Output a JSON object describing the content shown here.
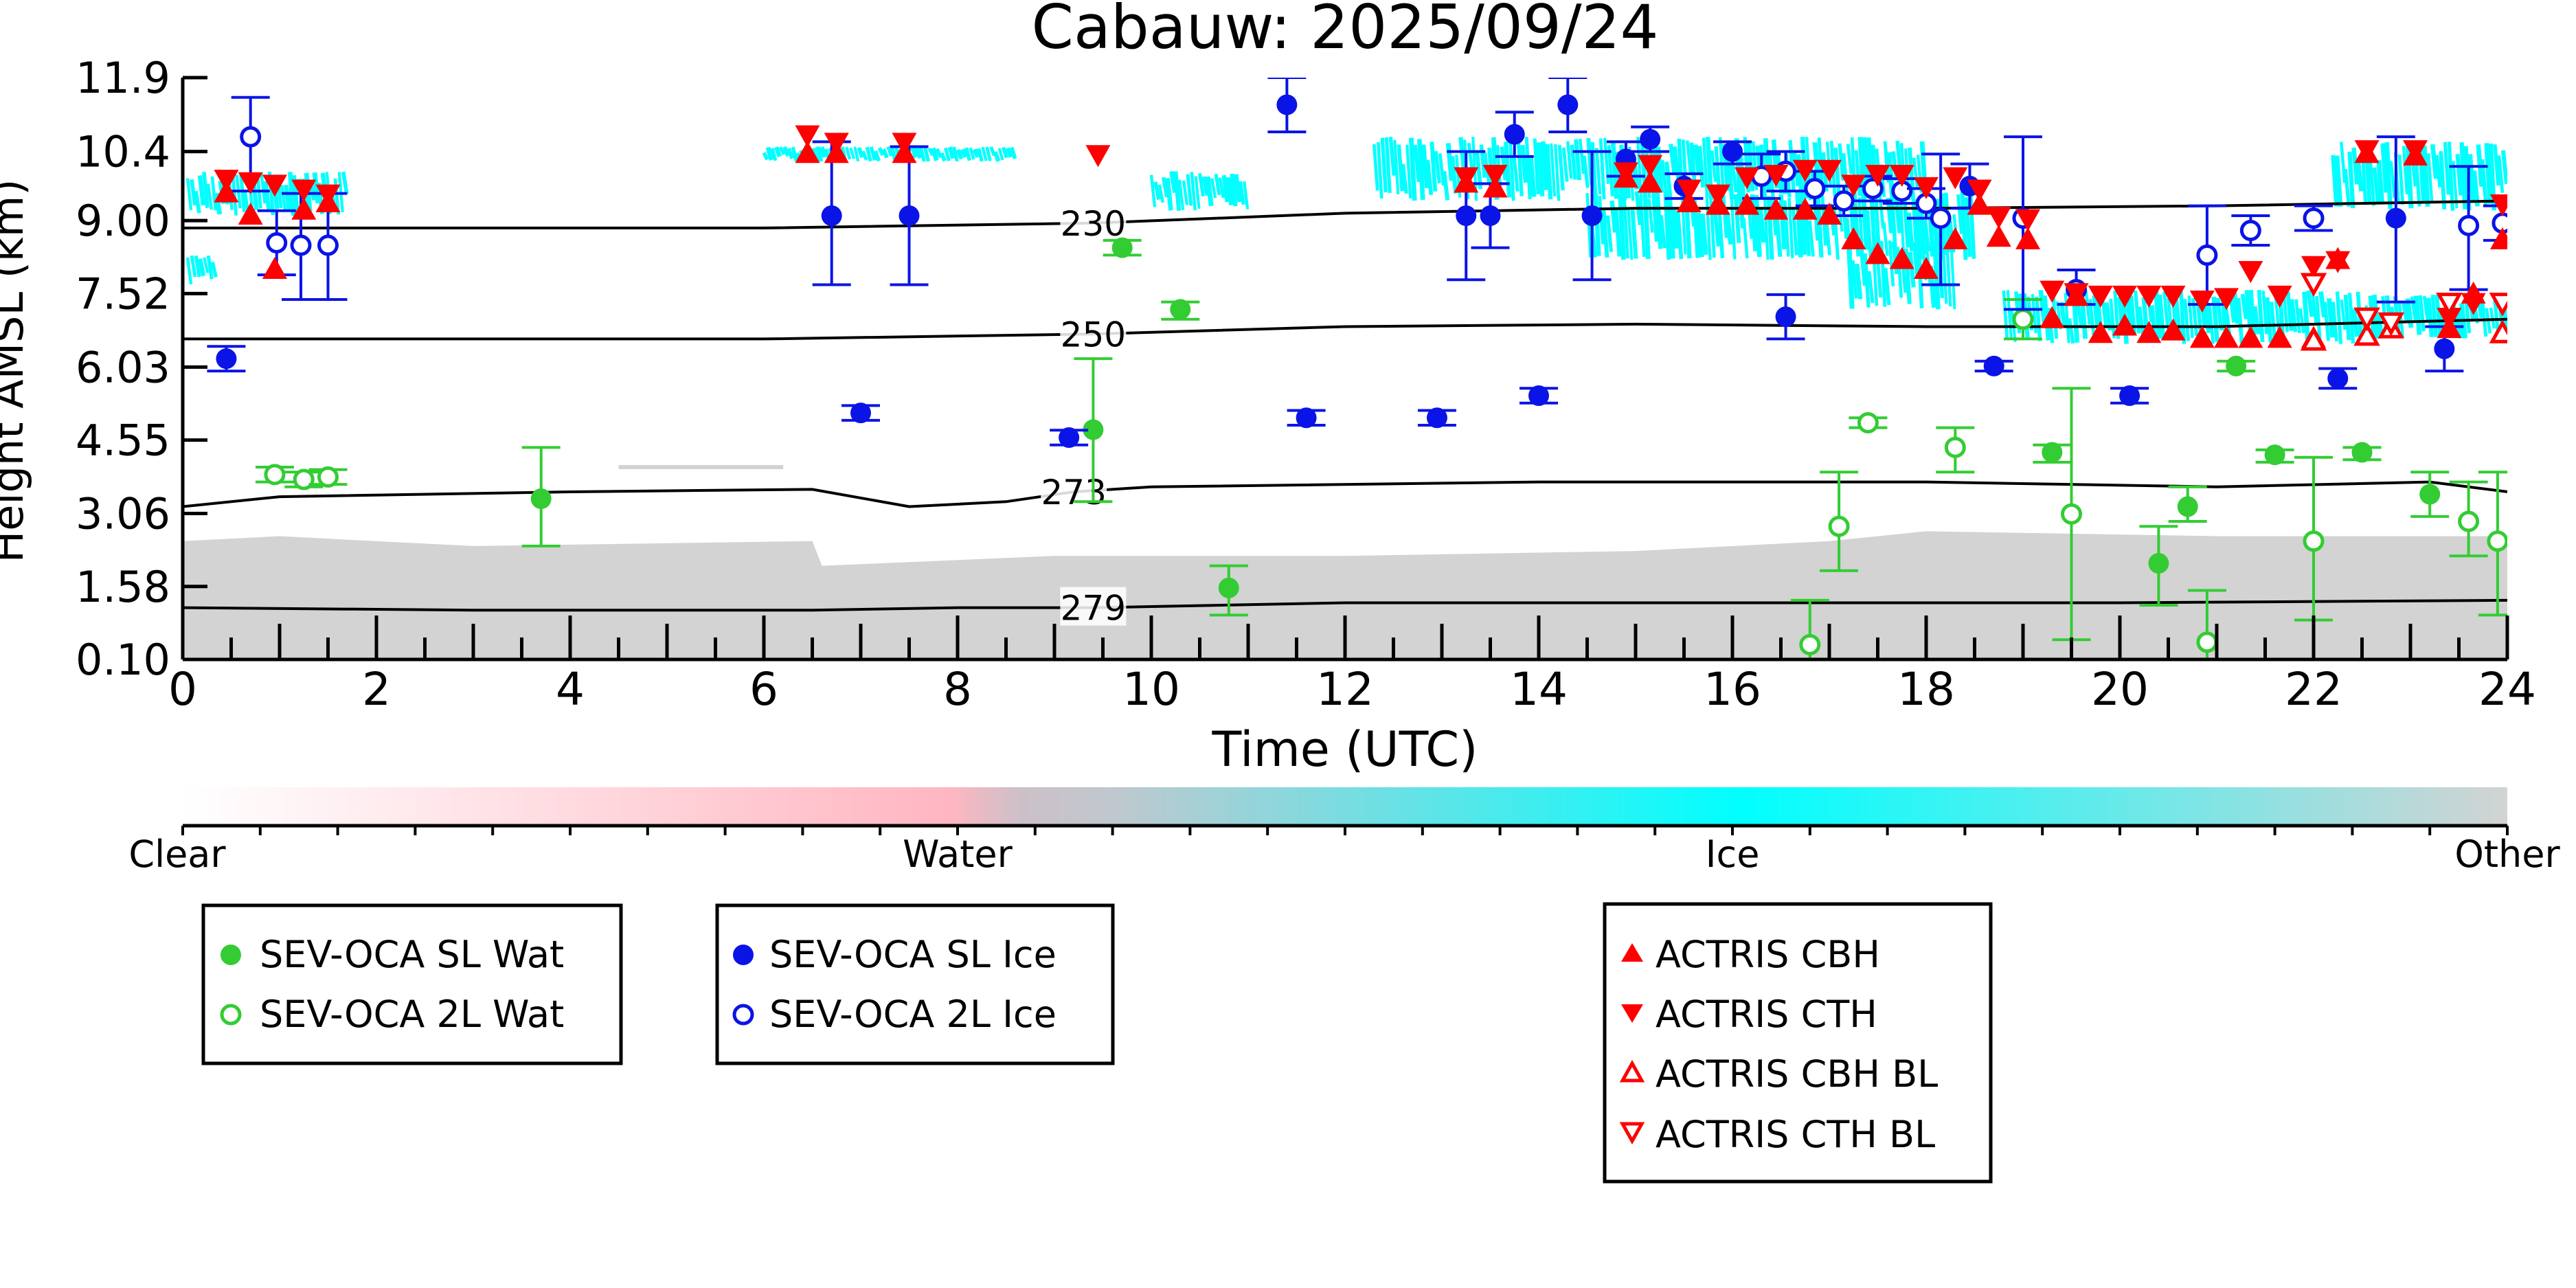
{
  "chart_data": {
    "type": "scatter",
    "title": "Cabauw: 2025/09/24",
    "xlabel": "Time (UTC)",
    "ylabel": "Height AMSL (km)",
    "xlim": [
      0,
      24
    ],
    "ylim": [
      0.1,
      11.9
    ],
    "x_ticks": [
      "0",
      "2",
      "4",
      "6",
      "8",
      "10",
      "12",
      "14",
      "16",
      "18",
      "20",
      "22",
      "24"
    ],
    "x_tick_values": [
      0,
      2,
      4,
      6,
      8,
      10,
      12,
      14,
      16,
      18,
      20,
      22,
      24
    ],
    "y_ticks": [
      "0.10",
      "1.58",
      "3.06",
      "4.55",
      "6.03",
      "7.52",
      "9.00",
      "10.4",
      "11.9"
    ],
    "y_tick_values": [
      0.1,
      1.58,
      3.06,
      4.55,
      6.03,
      7.52,
      9.0,
      10.4,
      11.9
    ],
    "colorbar": {
      "labels": [
        "Clear",
        "Water",
        "Ice",
        "Other"
      ],
      "colors": [
        "#ffffff",
        "#ffb6c1",
        "#00ffff",
        "#d3d3d3"
      ]
    },
    "background_classes": {
      "other_color": "#d3d3d3",
      "ice_color": "#00ffff",
      "water_color": "#ffb6c1",
      "other_low_layer": [
        [
          0,
          2.5
        ],
        [
          1,
          2.6
        ],
        [
          3,
          2.4
        ],
        [
          6.5,
          2.5
        ],
        [
          6.6,
          2.0
        ],
        [
          9,
          2.2
        ],
        [
          12,
          2.2
        ],
        [
          15,
          2.3
        ],
        [
          17,
          2.5
        ],
        [
          18,
          2.7
        ],
        [
          21,
          2.6
        ],
        [
          24,
          2.6
        ]
      ],
      "other_patches": [
        [
          4.5,
          4.0
        ],
        [
          6.2,
          4.0
        ]
      ],
      "ice_regions": [
        {
          "x": [
            0.05,
            1.7
          ],
          "y": [
            9.1,
            10.0
          ]
        },
        {
          "x": [
            0.05,
            0.35
          ],
          "y": [
            7.7,
            8.3
          ]
        },
        {
          "x": [
            6.0,
            8.6
          ],
          "y": [
            10.2,
            10.5
          ]
        },
        {
          "x": [
            10.0,
            11.0
          ],
          "y": [
            9.2,
            10.0
          ]
        },
        {
          "x": [
            12.3,
            18.0
          ],
          "y": [
            9.4,
            10.7
          ]
        },
        {
          "x": [
            14.5,
            18.5
          ],
          "y": [
            8.2,
            9.6
          ]
        },
        {
          "x": [
            17.2,
            18.3
          ],
          "y": [
            7.2,
            8.6
          ]
        },
        {
          "x": [
            18.8,
            22.5
          ],
          "y": [
            6.5,
            7.6
          ]
        },
        {
          "x": [
            22.2,
            24
          ],
          "y": [
            9.2,
            10.6
          ]
        },
        {
          "x": [
            22.5,
            24
          ],
          "y": [
            6.6,
            7.5
          ]
        }
      ]
    },
    "isotherms": [
      {
        "label": "230",
        "label_x": 9.4,
        "points": [
          [
            0,
            8.85
          ],
          [
            6,
            8.85
          ],
          [
            9.4,
            8.95
          ],
          [
            12,
            9.15
          ],
          [
            15,
            9.25
          ],
          [
            18,
            9.25
          ],
          [
            21,
            9.3
          ],
          [
            24,
            9.4
          ]
        ]
      },
      {
        "label": "250",
        "label_x": 9.4,
        "points": [
          [
            0,
            6.6
          ],
          [
            6,
            6.6
          ],
          [
            9.4,
            6.7
          ],
          [
            12,
            6.85
          ],
          [
            15,
            6.9
          ],
          [
            18,
            6.85
          ],
          [
            21,
            6.85
          ],
          [
            24,
            7.0
          ]
        ]
      },
      {
        "label": "273",
        "label_x": 9.2,
        "points": [
          [
            0,
            3.2
          ],
          [
            1,
            3.4
          ],
          [
            4,
            3.5
          ],
          [
            6.5,
            3.55
          ],
          [
            7.5,
            3.2
          ],
          [
            8.5,
            3.3
          ],
          [
            9.2,
            3.5
          ],
          [
            10,
            3.6
          ],
          [
            14,
            3.7
          ],
          [
            18,
            3.7
          ],
          [
            21,
            3.6
          ],
          [
            23.2,
            3.7
          ],
          [
            24,
            3.5
          ]
        ]
      },
      {
        "label": "279",
        "label_x": 9.4,
        "points": [
          [
            0,
            1.15
          ],
          [
            3,
            1.1
          ],
          [
            6.5,
            1.1
          ],
          [
            8,
            1.15
          ],
          [
            9.4,
            1.15
          ],
          [
            12,
            1.25
          ],
          [
            16,
            1.25
          ],
          [
            20,
            1.25
          ],
          [
            24,
            1.3
          ]
        ]
      }
    ],
    "series": [
      {
        "name": "SEV-OCA SL Wat",
        "color": "#33cc33",
        "marker": "filled-circle",
        "points": [
          [
            3.7,
            3.36,
            2.4,
            4.4
          ],
          [
            9.4,
            4.76,
            3.3,
            6.2
          ],
          [
            9.7,
            8.45,
            8.3,
            8.6
          ],
          [
            10.3,
            7.2,
            7.0,
            7.35
          ],
          [
            10.8,
            1.55,
            1.0,
            2.0
          ],
          [
            19.3,
            4.3,
            4.1,
            4.45
          ],
          [
            20.4,
            2.05,
            1.2,
            2.8
          ],
          [
            20.7,
            3.2,
            2.9,
            3.6
          ],
          [
            21.2,
            6.05,
            5.95,
            6.15
          ],
          [
            21.6,
            4.25,
            4.1,
            4.35
          ],
          [
            22.5,
            4.3,
            4.15,
            4.4
          ],
          [
            23.2,
            3.45,
            3.0,
            3.9
          ]
        ]
      },
      {
        "name": "SEV-OCA 2L Wat",
        "color": "#33cc33",
        "marker": "open-circle",
        "points": [
          [
            0.95,
            3.85,
            3.7,
            4.0
          ],
          [
            1.25,
            3.75,
            3.6,
            3.9
          ],
          [
            1.5,
            3.8,
            3.65,
            3.95
          ],
          [
            16.8,
            0.4,
            -0.5,
            1.3
          ],
          [
            17.1,
            2.8,
            1.9,
            3.9
          ],
          [
            17.4,
            4.9,
            4.8,
            5.0
          ],
          [
            18.3,
            4.4,
            3.9,
            4.8
          ],
          [
            19.0,
            7.0,
            6.6,
            7.4
          ],
          [
            19.5,
            3.05,
            0.5,
            5.6
          ],
          [
            20.9,
            0.45,
            -0.5,
            1.5
          ],
          [
            22.0,
            2.5,
            0.9,
            4.2
          ],
          [
            23.6,
            2.9,
            2.2,
            3.7
          ],
          [
            23.9,
            2.5,
            1.0,
            3.9
          ]
        ]
      },
      {
        "name": "SEV-OCA SL Ice",
        "color": "#0a14e6",
        "marker": "filled-circle",
        "points": [
          [
            0.45,
            6.2,
            5.95,
            6.45
          ],
          [
            6.7,
            9.1,
            7.7,
            10.6
          ],
          [
            7.0,
            5.1,
            4.95,
            5.25
          ],
          [
            7.5,
            9.1,
            7.7,
            10.5
          ],
          [
            9.15,
            4.6,
            4.45,
            4.75
          ],
          [
            11.4,
            11.35,
            10.8,
            11.9
          ],
          [
            11.6,
            5.0,
            4.85,
            5.15
          ],
          [
            12.95,
            5.0,
            4.85,
            5.15
          ],
          [
            13.25,
            9.1,
            7.8,
            10.4
          ],
          [
            13.5,
            9.1,
            8.45,
            9.75
          ],
          [
            13.75,
            10.75,
            10.3,
            11.2
          ],
          [
            14.0,
            5.45,
            5.3,
            5.6
          ],
          [
            14.3,
            11.35,
            10.8,
            11.9
          ],
          [
            14.55,
            9.1,
            7.8,
            10.4
          ],
          [
            14.9,
            10.25,
            9.9,
            10.6
          ],
          [
            15.15,
            10.65,
            10.4,
            10.9
          ],
          [
            15.5,
            9.7,
            9.45,
            9.95
          ],
          [
            16.0,
            10.4,
            10.15,
            10.6
          ],
          [
            16.55,
            7.05,
            6.6,
            7.5
          ],
          [
            18.45,
            9.7,
            9.25,
            10.15
          ],
          [
            18.7,
            6.05,
            5.95,
            6.15
          ],
          [
            20.1,
            5.45,
            5.3,
            5.6
          ],
          [
            22.25,
            5.8,
            5.6,
            6.0
          ],
          [
            22.85,
            9.05,
            7.35,
            10.7
          ],
          [
            23.35,
            6.4,
            5.95,
            6.85
          ]
        ]
      },
      {
        "name": "SEV-OCA 2L Ice",
        "color": "#0a14e6",
        "marker": "open-circle",
        "points": [
          [
            0.7,
            10.7,
            9.6,
            11.5
          ],
          [
            0.97,
            8.55,
            7.9,
            9.2
          ],
          [
            1.22,
            8.5,
            7.4,
            9.55
          ],
          [
            1.5,
            8.5,
            7.4,
            9.55
          ],
          [
            16.3,
            9.9,
            9.45,
            10.35
          ],
          [
            16.55,
            10.0,
            9.6,
            10.4
          ],
          [
            16.85,
            9.65,
            9.3,
            10.0
          ],
          [
            17.15,
            9.4,
            9.1,
            9.7
          ],
          [
            17.45,
            9.65,
            9.4,
            9.9
          ],
          [
            17.75,
            9.6,
            9.35,
            9.85
          ],
          [
            18.0,
            9.35,
            9.05,
            9.65
          ],
          [
            18.15,
            9.05,
            7.7,
            10.35
          ],
          [
            19.0,
            9.05,
            7.2,
            10.7
          ],
          [
            19.55,
            7.6,
            7.3,
            8.0
          ],
          [
            20.9,
            8.3,
            7.3,
            9.3
          ],
          [
            21.35,
            8.8,
            8.5,
            9.1
          ],
          [
            22.0,
            9.05,
            8.8,
            9.3
          ],
          [
            23.6,
            8.9,
            7.6,
            10.1
          ],
          [
            23.95,
            8.95,
            8.6,
            9.3
          ]
        ]
      },
      {
        "name": "ACTRIS CBH",
        "color": "#ff0000",
        "marker": "filled-triangle-up",
        "points": [
          [
            0.45,
            9.55
          ],
          [
            0.7,
            9.1
          ],
          [
            0.95,
            8.0
          ],
          [
            1.25,
            9.2
          ],
          [
            1.5,
            9.35
          ],
          [
            6.45,
            10.35
          ],
          [
            6.75,
            10.35
          ],
          [
            7.45,
            10.35
          ],
          [
            13.25,
            9.75
          ],
          [
            13.55,
            9.65
          ],
          [
            14.9,
            9.85
          ],
          [
            15.15,
            9.75
          ],
          [
            15.55,
            9.35
          ],
          [
            15.85,
            9.3
          ],
          [
            16.15,
            9.3
          ],
          [
            16.45,
            9.2
          ],
          [
            16.75,
            9.2
          ],
          [
            17.0,
            9.1
          ],
          [
            17.25,
            8.6
          ],
          [
            17.5,
            8.3
          ],
          [
            17.75,
            8.2
          ],
          [
            18.0,
            8.0
          ],
          [
            18.3,
            8.6
          ],
          [
            18.55,
            9.3
          ],
          [
            18.75,
            8.65
          ],
          [
            19.05,
            8.6
          ],
          [
            19.3,
            7.0
          ],
          [
            19.55,
            7.45
          ],
          [
            19.8,
            6.7
          ],
          [
            20.05,
            6.85
          ],
          [
            20.3,
            6.7
          ],
          [
            20.55,
            6.75
          ],
          [
            20.85,
            6.6
          ],
          [
            21.1,
            6.6
          ],
          [
            21.35,
            6.6
          ],
          [
            21.65,
            6.6
          ],
          [
            22.0,
            6.6
          ],
          [
            22.25,
            8.2
          ],
          [
            22.55,
            10.35
          ],
          [
            23.05,
            10.3
          ],
          [
            23.4,
            6.8
          ],
          [
            23.65,
            7.5
          ],
          [
            23.95,
            8.6
          ]
        ]
      },
      {
        "name": "ACTRIS CTH",
        "color": "#ff0000",
        "marker": "filled-triangle-down",
        "points": [
          [
            0.45,
            9.85
          ],
          [
            0.7,
            9.8
          ],
          [
            0.95,
            9.75
          ],
          [
            1.25,
            9.65
          ],
          [
            1.5,
            9.55
          ],
          [
            6.45,
            10.75
          ],
          [
            6.75,
            10.6
          ],
          [
            7.45,
            10.6
          ],
          [
            9.45,
            10.35
          ],
          [
            13.25,
            9.9
          ],
          [
            13.55,
            9.95
          ],
          [
            14.9,
            10.0
          ],
          [
            15.15,
            10.15
          ],
          [
            15.55,
            9.65
          ],
          [
            15.85,
            9.55
          ],
          [
            16.15,
            9.9
          ],
          [
            16.45,
            9.95
          ],
          [
            16.75,
            10.05
          ],
          [
            17.0,
            10.05
          ],
          [
            17.25,
            9.75
          ],
          [
            17.5,
            9.95
          ],
          [
            17.75,
            9.95
          ],
          [
            18.0,
            9.7
          ],
          [
            18.3,
            9.9
          ],
          [
            18.55,
            9.65
          ],
          [
            18.75,
            9.1
          ],
          [
            19.05,
            9.05
          ],
          [
            19.3,
            7.6
          ],
          [
            19.55,
            7.55
          ],
          [
            19.8,
            7.5
          ],
          [
            20.05,
            7.5
          ],
          [
            20.3,
            7.5
          ],
          [
            20.55,
            7.5
          ],
          [
            20.85,
            7.4
          ],
          [
            21.1,
            7.45
          ],
          [
            21.35,
            8.0
          ],
          [
            21.65,
            7.5
          ],
          [
            22.0,
            8.1
          ],
          [
            22.25,
            8.2
          ],
          [
            22.55,
            10.45
          ],
          [
            23.05,
            10.45
          ],
          [
            23.4,
            7.05
          ],
          [
            23.65,
            7.35
          ],
          [
            23.95,
            9.35
          ]
        ]
      },
      {
        "name": "ACTRIS CBH BL",
        "color": "#ff0000",
        "marker": "open-triangle-up",
        "points": [
          [
            22.0,
            6.55
          ],
          [
            22.55,
            6.65
          ],
          [
            22.8,
            6.8
          ],
          [
            23.95,
            6.7
          ]
        ]
      },
      {
        "name": "ACTRIS CTH BL",
        "color": "#ff0000",
        "marker": "open-triangle-down",
        "points": [
          [
            22.0,
            7.75
          ],
          [
            22.55,
            7.05
          ],
          [
            22.8,
            6.95
          ],
          [
            23.4,
            7.35
          ],
          [
            23.95,
            7.35
          ]
        ]
      }
    ],
    "legend_groups": [
      [
        "SEV-OCA SL Wat",
        "SEV-OCA 2L Wat"
      ],
      [
        "SEV-OCA SL Ice",
        "SEV-OCA 2L Ice"
      ],
      [
        "ACTRIS CBH",
        "ACTRIS CTH",
        "ACTRIS CBH BL",
        "ACTRIS CTH BL"
      ]
    ]
  }
}
